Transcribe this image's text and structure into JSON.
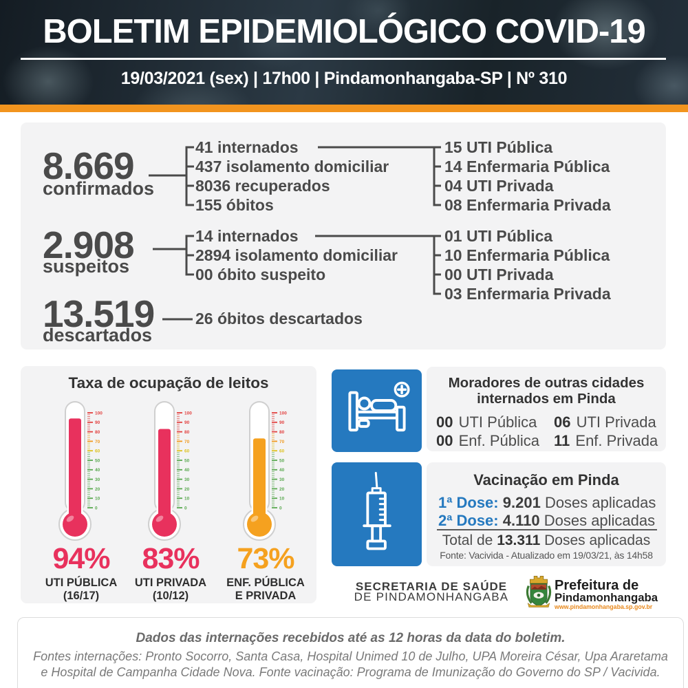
{
  "colors": {
    "accent_orange": "#f2941e",
    "brand_blue": "#2579bf",
    "pink": "#e8315d",
    "gauge_orange": "#f5a11f",
    "header_bg": "#1d262e"
  },
  "header": {
    "title": "BOLETIM EPIDEMIOLÓGICO COVID-19",
    "subtitle": "19/03/2021 (sex) | 17h00 | Pindamonhangaba-SP | Nº 310"
  },
  "cases": {
    "confirmed": {
      "value": "8.669",
      "label": "confirmados",
      "breakdown": [
        "41 internados",
        "437 isolamento domiciliar",
        "8036 recuperados",
        "155 óbitos"
      ],
      "beds": [
        "15 UTI Pública",
        "14 Enfermaria Pública",
        "04 UTI Privada",
        "08 Enfermaria Privada"
      ]
    },
    "suspected": {
      "value": "2.908",
      "label": "suspeitos",
      "breakdown": [
        "14 internados",
        "2894 isolamento domiciliar",
        "00 óbito suspeito"
      ],
      "beds": [
        "01 UTI Pública",
        "10 Enfermaria Pública",
        "00 UTI Privada",
        "03 Enfermaria Privada"
      ]
    },
    "discarded": {
      "value": "13.519",
      "label": "descartados",
      "note": "26 óbitos descartados"
    }
  },
  "chart_data": {
    "type": "thermometer-gauge",
    "title": "Taxa de ocupação de leitos",
    "axis": {
      "min": 0,
      "max": 100,
      "major_tick": 10,
      "minor_tick": 2
    },
    "gauges": [
      {
        "value": 94,
        "label": "94%",
        "name_line1": "UTI PÚBLICA",
        "name_line2": "(16/17)",
        "color": "#e8315d"
      },
      {
        "value": 83,
        "label": "83%",
        "name_line1": "UTI PRIVADA",
        "name_line2": "(10/12)",
        "color": "#e8315d"
      },
      {
        "value": 73,
        "label": "73%",
        "name_line1": "ENF. PÚBLICA",
        "name_line2": "E PRIVADA",
        "color": "#f5a11f"
      }
    ]
  },
  "outsiders": {
    "title_line1": "Moradores de outras cidades",
    "title_line2": "internados em Pinda",
    "stats": [
      {
        "num": "00",
        "label": "UTI Pública"
      },
      {
        "num": "00",
        "label": "Enf. Pública"
      },
      {
        "num": "06",
        "label": "UTI Privada"
      },
      {
        "num": "11",
        "label": "Enf. Privada"
      }
    ]
  },
  "vaccination": {
    "title": "Vacinação em Pinda",
    "doses": [
      {
        "label": "1ª Dose:",
        "value": "9.201",
        "suffix": "Doses aplicadas"
      },
      {
        "label": "2ª Dose:",
        "value": "4.110",
        "suffix": "Doses aplicadas"
      }
    ],
    "total_prefix": "Total de",
    "total_value": "13.311",
    "total_suffix": "Doses aplicadas",
    "source": "Fonte: Vacivida - Atualizado em 19/03/21, às 14h58"
  },
  "org": {
    "line1": "SECRETARIA DE SAÚDE",
    "line2": "DE PINDAMONHANGABA"
  },
  "city_logo": {
    "line1": "Prefeitura de",
    "line2": "Pindamonhangaba",
    "line3": "www.pindamonhangaba.sp.gov.br"
  },
  "footer": {
    "note": "Dados das internações recebidos até as 12 horas da data do boletim.",
    "sources_line1": "Fontes internações: Pronto Socorro, Santa Casa, Hospital Unimed 10 de Julho, UPA Moreira César, Upa Araretama",
    "sources_line2": "e Hospital de Campanha Cidade Nova. Fonte vacinação: Programa de Imunização do Governo do SP / Vacivida."
  }
}
